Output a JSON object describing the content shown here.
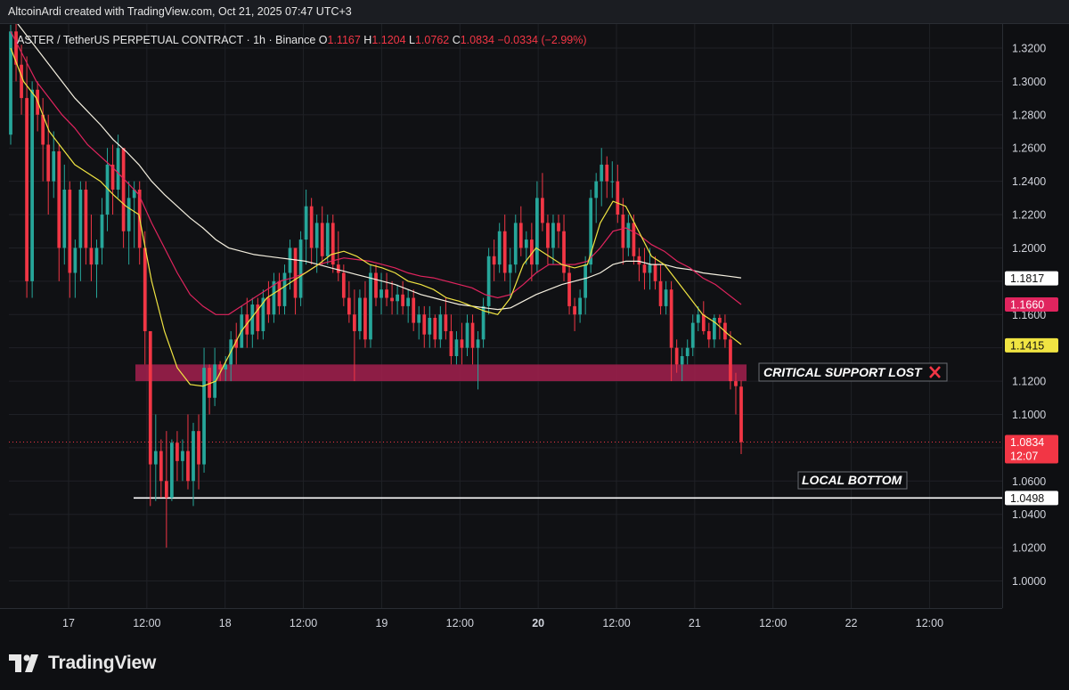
{
  "header": {
    "credit": "AltcoinArdi created with TradingView.com, Oct 21, 2025 07:47 UTC+3"
  },
  "legend": {
    "symbol": "ASTER / TetherUS PERPETUAL CONTRACT · 1h · Binance",
    "o_label": "O",
    "o_value": "1.1167",
    "h_label": "H",
    "h_value": "1.1204",
    "l_label": "L",
    "l_value": "1.0762",
    "c_label": "C",
    "c_value": "1.0834",
    "change": "−0.0334 (−2.99%)"
  },
  "branding": {
    "logo_text": "TradingView"
  },
  "colors": {
    "up": "#26a69a",
    "down": "#f23645",
    "ema_fast": "#f0e442",
    "ema_mid": "#e0245e",
    "ema_slow": "#f5f0e0",
    "zone": "#a3204e"
  },
  "chart_data": {
    "type": "candlestick",
    "symbol": "ASTER / TetherUS PERPETUAL CONTRACT",
    "interval": "1h",
    "exchange": "Binance",
    "ylim": [
      0.98,
      1.34
    ],
    "y_ticks": [
      "1.3200",
      "1.3000",
      "1.2800",
      "1.2600",
      "1.2400",
      "1.2200",
      "1.2000",
      "1.1600",
      "1.1200",
      "1.1000",
      "1.0600",
      "1.0400",
      "1.0200",
      "1.0000"
    ],
    "x_ticks": [
      {
        "label": "17",
        "hour": -5
      },
      {
        "label": "12:00",
        "hour": 7
      },
      {
        "label": "18",
        "hour": 19
      },
      {
        "label": "12:00",
        "hour": 31
      },
      {
        "label": "19",
        "hour": 43
      },
      {
        "label": "12:00",
        "hour": 55
      },
      {
        "label": "20",
        "hour": 67
      },
      {
        "label": "12:00",
        "hour": 79
      },
      {
        "label": "21",
        "hour": 91
      },
      {
        "label": "12:00",
        "hour": 103
      },
      {
        "label": "22",
        "hour": 115
      },
      {
        "label": "12:00",
        "hour": 127
      }
    ],
    "hours_start": -10,
    "hours_end": 140,
    "candles": [
      [
        1.268,
        1.334,
        1.262,
        1.33
      ],
      [
        1.33,
        1.336,
        1.3,
        1.31
      ],
      [
        1.31,
        1.322,
        1.28,
        1.29
      ],
      [
        1.29,
        1.315,
        1.17,
        1.18
      ],
      [
        1.18,
        1.3,
        1.17,
        1.295
      ],
      [
        1.295,
        1.3,
        1.27,
        1.28
      ],
      [
        1.28,
        1.29,
        1.24,
        1.262
      ],
      [
        1.262,
        1.28,
        1.22,
        1.24
      ],
      [
        1.24,
        1.27,
        1.23,
        1.258
      ],
      [
        1.258,
        1.262,
        1.18,
        1.2
      ],
      [
        1.2,
        1.25,
        1.19,
        1.235
      ],
      [
        1.235,
        1.24,
        1.17,
        1.185
      ],
      [
        1.185,
        1.205,
        1.17,
        1.2
      ],
      [
        1.2,
        1.24,
        1.18,
        1.235
      ],
      [
        1.235,
        1.24,
        1.19,
        1.2
      ],
      [
        1.2,
        1.22,
        1.18,
        1.19
      ],
      [
        1.19,
        1.205,
        1.17,
        1.2
      ],
      [
        1.2,
        1.23,
        1.19,
        1.22
      ],
      [
        1.22,
        1.26,
        1.21,
        1.25
      ],
      [
        1.25,
        1.262,
        1.22,
        1.235
      ],
      [
        1.235,
        1.268,
        1.23,
        1.26
      ],
      [
        1.26,
        1.26,
        1.2,
        1.21
      ],
      [
        1.21,
        1.24,
        1.19,
        1.23
      ],
      [
        1.23,
        1.24,
        1.2,
        1.235
      ],
      [
        1.235,
        1.24,
        1.19,
        1.2
      ],
      [
        1.2,
        1.21,
        1.13,
        1.15
      ],
      [
        1.15,
        1.15,
        1.045,
        1.07
      ],
      [
        1.07,
        1.1,
        1.048,
        1.078
      ],
      [
        1.078,
        1.085,
        1.05,
        1.06
      ],
      [
        1.06,
        1.09,
        1.02,
        1.05
      ],
      [
        1.05,
        1.085,
        1.048,
        1.083
      ],
      [
        1.083,
        1.09,
        1.06,
        1.072
      ],
      [
        1.072,
        1.085,
        1.06,
        1.078
      ],
      [
        1.078,
        1.1,
        1.055,
        1.06
      ],
      [
        1.06,
        1.095,
        1.045,
        1.09
      ],
      [
        1.09,
        1.1,
        1.055,
        1.07
      ],
      [
        1.07,
        1.14,
        1.065,
        1.128
      ],
      [
        1.128,
        1.13,
        1.1,
        1.11
      ],
      [
        1.11,
        1.14,
        1.105,
        1.13
      ],
      [
        1.13,
        1.132,
        1.12,
        1.127
      ],
      [
        1.127,
        1.135,
        1.12,
        1.13
      ],
      [
        1.13,
        1.15,
        1.12,
        1.145
      ],
      [
        1.145,
        1.155,
        1.13,
        1.14
      ],
      [
        1.14,
        1.165,
        1.14,
        1.16
      ],
      [
        1.16,
        1.17,
        1.14,
        1.148
      ],
      [
        1.148,
        1.17,
        1.14,
        1.166
      ],
      [
        1.166,
        1.17,
        1.145,
        1.15
      ],
      [
        1.15,
        1.175,
        1.145,
        1.17
      ],
      [
        1.17,
        1.18,
        1.155,
        1.16
      ],
      [
        1.16,
        1.185,
        1.155,
        1.18
      ],
      [
        1.18,
        1.185,
        1.16,
        1.165
      ],
      [
        1.165,
        1.19,
        1.16,
        1.185
      ],
      [
        1.185,
        1.205,
        1.175,
        1.2
      ],
      [
        1.2,
        1.2,
        1.16,
        1.17
      ],
      [
        1.17,
        1.21,
        1.165,
        1.205
      ],
      [
        1.205,
        1.235,
        1.19,
        1.225
      ],
      [
        1.225,
        1.23,
        1.19,
        1.2
      ],
      [
        1.2,
        1.22,
        1.185,
        1.215
      ],
      [
        1.215,
        1.225,
        1.19,
        1.195
      ],
      [
        1.195,
        1.22,
        1.19,
        1.215
      ],
      [
        1.215,
        1.22,
        1.185,
        1.19
      ],
      [
        1.19,
        1.21,
        1.18,
        1.185
      ],
      [
        1.185,
        1.19,
        1.165,
        1.17
      ],
      [
        1.17,
        1.18,
        1.155,
        1.16
      ],
      [
        1.16,
        1.175,
        1.12,
        1.15
      ],
      [
        1.15,
        1.175,
        1.145,
        1.17
      ],
      [
        1.17,
        1.18,
        1.14,
        1.145
      ],
      [
        1.145,
        1.19,
        1.14,
        1.185
      ],
      [
        1.185,
        1.19,
        1.165,
        1.17
      ],
      [
        1.17,
        1.185,
        1.16,
        1.175
      ],
      [
        1.175,
        1.185,
        1.165,
        1.17
      ],
      [
        1.17,
        1.18,
        1.16,
        1.168
      ],
      [
        1.168,
        1.178,
        1.16,
        1.172
      ],
      [
        1.172,
        1.18,
        1.16,
        1.165
      ],
      [
        1.165,
        1.175,
        1.155,
        1.17
      ],
      [
        1.17,
        1.175,
        1.15,
        1.155
      ],
      [
        1.155,
        1.165,
        1.145,
        1.16
      ],
      [
        1.16,
        1.165,
        1.14,
        1.148
      ],
      [
        1.148,
        1.165,
        1.14,
        1.158
      ],
      [
        1.158,
        1.16,
        1.14,
        1.145
      ],
      [
        1.145,
        1.165,
        1.14,
        1.16
      ],
      [
        1.16,
        1.17,
        1.145,
        1.15
      ],
      [
        1.15,
        1.16,
        1.13,
        1.135
      ],
      [
        1.135,
        1.15,
        1.13,
        1.145
      ],
      [
        1.145,
        1.155,
        1.13,
        1.14
      ],
      [
        1.14,
        1.16,
        1.135,
        1.155
      ],
      [
        1.155,
        1.16,
        1.13,
        1.14
      ],
      [
        1.14,
        1.15,
        1.115,
        1.145
      ],
      [
        1.145,
        1.17,
        1.14,
        1.165
      ],
      [
        1.165,
        1.2,
        1.16,
        1.195
      ],
      [
        1.195,
        1.205,
        1.18,
        1.19
      ],
      [
        1.19,
        1.215,
        1.185,
        1.21
      ],
      [
        1.21,
        1.22,
        1.18,
        1.185
      ],
      [
        1.185,
        1.2,
        1.17,
        1.19
      ],
      [
        1.19,
        1.22,
        1.185,
        1.215
      ],
      [
        1.215,
        1.225,
        1.195,
        1.2
      ],
      [
        1.2,
        1.21,
        1.19,
        1.205
      ],
      [
        1.205,
        1.215,
        1.18,
        1.19
      ],
      [
        1.19,
        1.24,
        1.185,
        1.23
      ],
      [
        1.23,
        1.245,
        1.21,
        1.215
      ],
      [
        1.215,
        1.22,
        1.19,
        1.2
      ],
      [
        1.2,
        1.22,
        1.19,
        1.215
      ],
      [
        1.215,
        1.22,
        1.2,
        1.21
      ],
      [
        1.21,
        1.22,
        1.18,
        1.185
      ],
      [
        1.185,
        1.19,
        1.16,
        1.165
      ],
      [
        1.165,
        1.17,
        1.15,
        1.16
      ],
      [
        1.16,
        1.175,
        1.155,
        1.17
      ],
      [
        1.17,
        1.195,
        1.16,
        1.19
      ],
      [
        1.19,
        1.235,
        1.185,
        1.23
      ],
      [
        1.23,
        1.245,
        1.215,
        1.24
      ],
      [
        1.24,
        1.26,
        1.225,
        1.25
      ],
      [
        1.25,
        1.255,
        1.23,
        1.24
      ],
      [
        1.24,
        1.252,
        1.23,
        1.24
      ],
      [
        1.24,
        1.25,
        1.215,
        1.22
      ],
      [
        1.22,
        1.23,
        1.19,
        1.2
      ],
      [
        1.2,
        1.22,
        1.195,
        1.215
      ],
      [
        1.215,
        1.22,
        1.19,
        1.195
      ],
      [
        1.195,
        1.2,
        1.18,
        1.19
      ],
      [
        1.19,
        1.2,
        1.175,
        1.185
      ],
      [
        1.185,
        1.2,
        1.175,
        1.19
      ],
      [
        1.19,
        1.195,
        1.175,
        1.18
      ],
      [
        1.18,
        1.19,
        1.16,
        1.165
      ],
      [
        1.165,
        1.18,
        1.16,
        1.175
      ],
      [
        1.175,
        1.18,
        1.12,
        1.14
      ],
      [
        1.14,
        1.145,
        1.125,
        1.13
      ],
      [
        1.13,
        1.14,
        1.12,
        1.135
      ],
      [
        1.135,
        1.145,
        1.13,
        1.14
      ],
      [
        1.14,
        1.16,
        1.135,
        1.155
      ],
      [
        1.155,
        1.165,
        1.15,
        1.16
      ],
      [
        1.16,
        1.168,
        1.148,
        1.15
      ],
      [
        1.15,
        1.155,
        1.14,
        1.145
      ],
      [
        1.145,
        1.16,
        1.14,
        1.158
      ],
      [
        1.158,
        1.16,
        1.145,
        1.155
      ],
      [
        1.155,
        1.16,
        1.14,
        1.145
      ],
      [
        1.145,
        1.15,
        1.115,
        1.12
      ],
      [
        1.12,
        1.125,
        1.1,
        1.117
      ],
      [
        1.1167,
        1.1204,
        1.0762,
        1.0834
      ]
    ],
    "ema_fast": [
      1.32,
      1.3,
      1.29,
      1.27,
      1.26,
      1.25,
      1.245,
      1.24,
      1.232,
      1.225,
      1.22,
      1.18,
      1.15,
      1.128,
      1.118,
      1.117,
      1.12,
      1.135,
      1.15,
      1.16,
      1.17,
      1.175,
      1.18,
      1.185,
      1.19,
      1.196,
      1.198,
      1.195,
      1.19,
      1.188,
      1.185,
      1.18,
      1.178,
      1.175,
      1.17,
      1.168,
      1.165,
      1.162,
      1.16,
      1.17,
      1.19,
      1.2,
      1.195,
      1.19,
      1.188,
      1.19,
      1.215,
      1.228,
      1.225,
      1.21,
      1.195,
      1.19,
      1.18,
      1.17,
      1.16,
      1.155,
      1.148,
      1.142
    ],
    "ema_mid": [
      1.33,
      1.315,
      1.3,
      1.29,
      1.28,
      1.272,
      1.262,
      1.255,
      1.248,
      1.24,
      1.232,
      1.215,
      1.2,
      1.185,
      1.172,
      1.165,
      1.16,
      1.16,
      1.165,
      1.17,
      1.175,
      1.18,
      1.182,
      1.185,
      1.19,
      1.192,
      1.194,
      1.193,
      1.192,
      1.19,
      1.188,
      1.185,
      1.183,
      1.182,
      1.18,
      1.178,
      1.176,
      1.172,
      1.17,
      1.172,
      1.178,
      1.185,
      1.19,
      1.19,
      1.19,
      1.192,
      1.2,
      1.21,
      1.212,
      1.208,
      1.202,
      1.198,
      1.192,
      1.188,
      1.182,
      1.178,
      1.172,
      1.166
    ],
    "ema_slow": [
      1.34,
      1.33,
      1.32,
      1.31,
      1.3,
      1.29,
      1.282,
      1.274,
      1.265,
      1.258,
      1.25,
      1.24,
      1.232,
      1.225,
      1.218,
      1.212,
      1.205,
      1.2,
      1.198,
      1.196,
      1.195,
      1.194,
      1.193,
      1.192,
      1.19,
      1.188,
      1.186,
      1.184,
      1.182,
      1.18,
      1.178,
      1.175,
      1.172,
      1.17,
      1.168,
      1.166,
      1.165,
      1.164,
      1.163,
      1.164,
      1.168,
      1.172,
      1.175,
      1.178,
      1.18,
      1.182,
      1.185,
      1.19,
      1.192,
      1.192,
      1.19,
      1.19,
      1.188,
      1.187,
      1.185,
      1.184,
      1.183,
      1.182
    ],
    "support_zone": {
      "low": 1.12,
      "high": 1.13,
      "label": "CRITICAL SUPPORT LOST"
    },
    "bottom_line": {
      "value": 1.0498,
      "label": "LOCAL BOTTOM"
    },
    "price_tags": [
      {
        "value": 1.1817,
        "text": "1.1817",
        "bg": "#ffffff",
        "fg": "#111111"
      },
      {
        "value": 1.166,
        "text": "1.1660",
        "bg": "#e0245e",
        "fg": "#ffffff"
      },
      {
        "value": 1.1415,
        "text": "1.1415",
        "bg": "#f0e442",
        "fg": "#111111"
      },
      {
        "value": 1.0834,
        "text": "1.0834",
        "sub": "12:07",
        "bg": "#f23645",
        "fg": "#ffffff"
      },
      {
        "value": 1.0498,
        "text": "1.0498",
        "bg": "#ffffff",
        "fg": "#111111"
      }
    ],
    "last_price": 1.0834
  }
}
